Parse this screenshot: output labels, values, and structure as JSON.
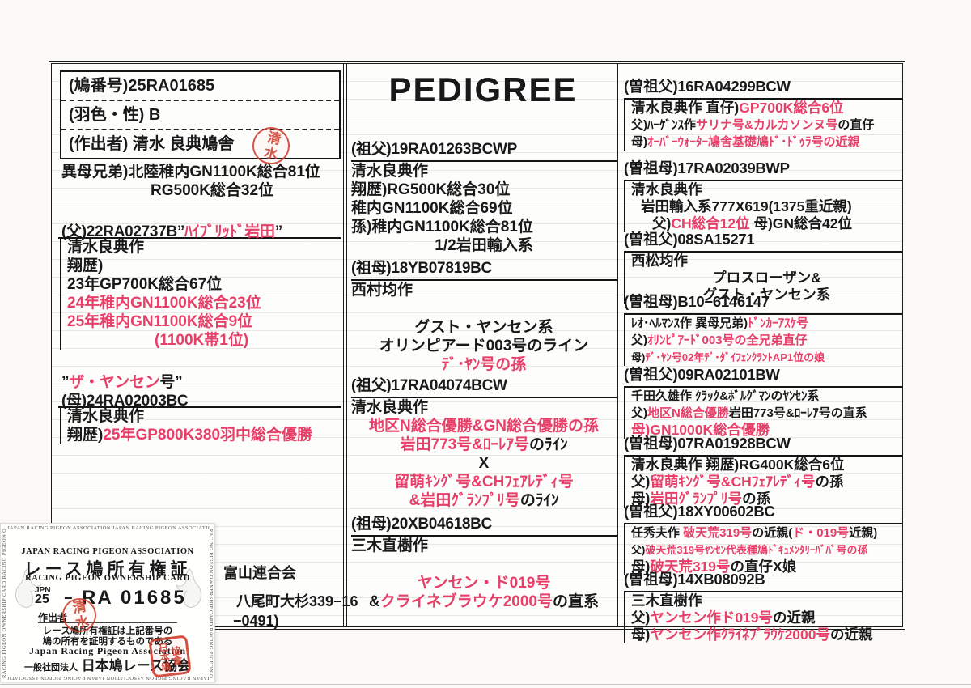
{
  "pedigree_title": "PEDIGREE",
  "info": {
    "rows": [
      "(鳩番号)25RA01685",
      "(羽色・性) B",
      "(作出者)  清水 良典鳩舎"
    ],
    "seal": "清水"
  },
  "left": {
    "siblings": [
      {
        "s": [
          [
            "異母兄弟)北陸稚内GN1100K総合81位",
            "b"
          ]
        ]
      },
      {
        "s": [
          [
            "RG500K総合32位",
            "b"
          ]
        ],
        "x": 110
      }
    ],
    "father": {
      "head": [
        [
          "(父)22RA02737B”",
          "b"
        ],
        [
          "ﾊｲﾌﾞﾘｯﾄﾞ岩田",
          "r"
        ],
        [
          "”",
          "b"
        ]
      ],
      "rows": [
        {
          "s": [
            [
              "清水良典作",
              "b"
            ]
          ]
        },
        {
          "s": [
            [
              "翔歴)",
              "b"
            ]
          ]
        },
        {
          "s": [
            [
              "23年GP700K総合67位",
              "b"
            ]
          ]
        },
        {
          "s": [
            [
              "24年稚内GN1100K総合23位",
              "r"
            ]
          ]
        },
        {
          "s": [
            [
              "25年稚内GN1100K総合9位",
              "r"
            ]
          ]
        },
        {
          "s": [
            [
              "(1100K帯1位)",
              "r"
            ]
          ],
          "x": 108
        }
      ]
    },
    "mother": {
      "name": [
        [
          "”",
          "b"
        ],
        [
          "ザ・ヤンセン",
          "r"
        ],
        [
          "号”",
          "b"
        ]
      ],
      "head": [
        [
          "(母)24RA02003BC",
          "b"
        ]
      ],
      "rows": [
        {
          "s": [
            [
              "清水良典作",
              "b"
            ]
          ]
        },
        {
          "s": [
            [
              "翔歴)",
              "b"
            ],
            [
              "25年GP800K380羽中総合優勝",
              "r"
            ]
          ]
        }
      ]
    }
  },
  "center": {
    "blocks": [
      {
        "head": "(祖父)19RA01263BCWP",
        "rows": [
          {
            "s": [
              [
                "清水良典作",
                "b"
              ]
            ]
          },
          {
            "s": [
              [
                "翔歴)RG500K総合30位",
                "b"
              ]
            ]
          },
          {
            "s": [
              [
                "稚内GN1100K総合69位",
                "b"
              ]
            ]
          },
          {
            "s": [
              [
                "孫)稚内GN1100K総合81位",
                "b"
              ]
            ]
          },
          {
            "s": [
              [
                "1/2岩田輸入系",
                "b"
              ]
            ],
            "c": 1
          }
        ]
      },
      {
        "head": "(祖母)18YB07819BC",
        "rows": [
          {
            "s": [
              [
                "西村均作",
                "b"
              ]
            ]
          },
          {
            "s": []
          },
          {
            "s": [
              [
                "グスト・ヤンセン系",
                "b"
              ]
            ],
            "c": 1
          },
          {
            "s": [
              [
                "オリンピアード003号のライン",
                "b"
              ]
            ],
            "c": 1
          },
          {
            "s": [
              [
                "ﾃﾞ･ﾔﾝ号の孫",
                "r"
              ]
            ],
            "c": 1
          }
        ]
      },
      {
        "head": "(祖父)17RA04074BCW",
        "rows": [
          {
            "s": [
              [
                "清水良典作",
                "b"
              ]
            ]
          },
          {
            "s": [
              [
                "地区N総合優勝&GN総合優勝の孫",
                "r"
              ]
            ],
            "c": 1
          },
          {
            "s": [
              [
                "岩田773号&ﾛｰﾚｱ号",
                "r"
              ],
              [
                "のﾗｲﾝ",
                "b"
              ]
            ],
            "c": 1
          },
          {
            "s": [
              [
                "X",
                "b"
              ]
            ],
            "c": 1
          },
          {
            "s": [
              [
                "留萌ｷﾝｸﾞ号&CHﾌｪｱﾚﾃﾞｨ号",
                "r"
              ]
            ],
            "c": 1
          },
          {
            "s": [
              [
                "&岩田ｸﾞﾗﾝﾌﾟﾘ号",
                "r"
              ],
              [
                "のﾗｲﾝ",
                "b"
              ]
            ],
            "c": 1
          }
        ]
      },
      {
        "head": "(祖母)20XB04618BC",
        "rows": [
          {
            "s": [
              [
                "三木直樹作",
                "b"
              ]
            ]
          },
          {
            "s": []
          },
          {
            "s": [
              [
                "ヤンセン・ド019号",
                "r"
              ]
            ],
            "c": 1
          },
          {
            "s": [
              [
                "&",
                "b"
              ],
              [
                "クライネブラウケ2000号",
                "r"
              ],
              [
                "の直系",
                "b"
              ]
            ],
            "c": 1
          }
        ]
      }
    ]
  },
  "right": {
    "blocks": [
      {
        "head": "(曽祖父)16RA04299BCW",
        "rows": [
          {
            "s": [
              [
                "清水良典作 直仔)",
                "b"
              ],
              [
                "GP700K総合6位",
                "r"
              ]
            ]
          },
          {
            "s": [
              [
                "父)ﾊｰｹﾞﾝｽ作",
                "b"
              ],
              [
                "サリナ号&カルカソンヌ号",
                "r"
              ],
              [
                "の直仔",
                "b"
              ]
            ],
            "sz": "s"
          },
          {
            "s": [
              [
                "母)",
                "b"
              ],
              [
                "ｵｰﾊﾞｰｳｫｰﾀｰ鳩舎基礎鳩ﾄﾞ･ﾄﾞｩﾗ号の近親",
                "r"
              ]
            ],
            "sz": "s"
          }
        ]
      },
      {
        "head": "(曽祖母)17RA02039BWP",
        "rows": [
          {
            "s": [
              [
                "清水良典作",
                "b"
              ]
            ]
          },
          {
            "s": [
              [
                "岩田輸入系777X619(1375重近親)",
                "b"
              ]
            ],
            "x": 12
          },
          {
            "s": [
              [
                "父)",
                "b"
              ],
              [
                "CH総合12位",
                "r"
              ],
              [
                "  母)GN総合42位",
                "b"
              ]
            ],
            "x": 26
          }
        ]
      },
      {
        "head": "(曽祖父)08SA15271",
        "rows": [
          {
            "s": [
              [
                "西松均作",
                "b"
              ]
            ]
          },
          {
            "s": [
              [
                "プロスローザン&",
                "b"
              ]
            ],
            "c": 1
          },
          {
            "s": [
              [
                "グスト・ヤンセン系",
                "b"
              ]
            ],
            "c": 1
          }
        ]
      },
      {
        "head": "(曽祖母)B10−6146147",
        "rows": [
          {
            "s": [
              [
                "ﾚｵ･ﾍﾙﾏﾝｽ作 異母兄弟)",
                "b"
              ],
              [
                "ﾄﾞﾝｶｰｱｽｹ号",
                "r"
              ]
            ],
            "sz": "s"
          },
          {
            "s": [
              [
                "父)",
                "b"
              ],
              [
                "ｵﾘﾝﾋﾟｱｰﾄﾞ003号の全兄弟直仔",
                "r"
              ]
            ],
            "sz": "s"
          },
          {
            "s": [
              [
                "母)",
                "b"
              ],
              [
                "ﾃﾞ･ﾔﾝ号02年ﾃﾞ･ﾀﾞｲﾌｪﾝｸﾗﾝﾄAP1位の娘",
                "r"
              ]
            ],
            "sz": "xs"
          }
        ]
      },
      {
        "head": "(曽祖父)09RA02101BW",
        "rows": [
          {
            "s": [
              [
                "千田久雄作 ｸﾗｯｸ&ﾎﾞﾙｸﾞﾏﾝのﾔﾝｾﾝ系",
                "b"
              ]
            ],
            "sz": "s"
          },
          {
            "s": [
              [
                "父)",
                "b"
              ],
              [
                "地区N総合優勝",
                "r"
              ],
              [
                "岩田773号&ﾛｰﾚｱ号の直系",
                "b"
              ]
            ],
            "sz": "s"
          },
          {
            "s": [
              [
                "母)GN1000K総合優勝",
                "r"
              ]
            ]
          }
        ]
      },
      {
        "head": "(曽祖母)07RA01928BCW",
        "rows": [
          {
            "s": [
              [
                "清水良典作 翔歴)RG400K総合6位",
                "b"
              ]
            ]
          },
          {
            "s": [
              [
                "父)",
                "b"
              ],
              [
                "留萌ｷﾝｸﾞ号&CHﾌｪｱﾚﾃﾞｨ号",
                "r"
              ],
              [
                "の孫",
                "b"
              ]
            ]
          },
          {
            "s": [
              [
                "母)",
                "b"
              ],
              [
                "岩田ｸﾞﾗﾝﾌﾟﾘ号",
                "r"
              ],
              [
                "の孫",
                "b"
              ]
            ]
          }
        ]
      },
      {
        "head": "(曽祖父)18XY00602BC",
        "rows": [
          {
            "s": [
              [
                "任秀夫作 ",
                "b"
              ],
              [
                "破天荒319号",
                "r"
              ],
              [
                "の近親(",
                "b"
              ],
              [
                "ド・019号",
                "r"
              ],
              [
                "近親)",
                "b"
              ]
            ],
            "sz": "s"
          },
          {
            "s": [
              [
                "父)",
                "b"
              ],
              [
                "破天荒319号ﾔﾝｾﾝ代表種鳩ﾄﾞｷｭﾒﾝﾀﾘｰﾊﾞﾊﾞ号の孫",
                "r"
              ]
            ],
            "sz": "xs"
          },
          {
            "s": [
              [
                "母)",
                "b"
              ],
              [
                "破天荒319号",
                "r"
              ],
              [
                "の直仔X娘",
                "b"
              ]
            ]
          }
        ]
      },
      {
        "head": "(曽祖母)14XB08092B",
        "rows": [
          {
            "s": [
              [
                "三木直樹作",
                "b"
              ]
            ]
          },
          {
            "s": [
              [
                "父)",
                "b"
              ],
              [
                "ヤンセン作ド019号",
                "r"
              ],
              [
                "の近親",
                "b"
              ]
            ]
          },
          {
            "s": [
              [
                "母)",
                "b"
              ],
              [
                "ヤンセン作ｸﾗｲﾈﾌﾞﾗｳｹ2000号",
                "r"
              ],
              [
                "の近親",
                "b"
              ]
            ]
          }
        ]
      }
    ]
  },
  "affiliation": {
    "line1": "富山連合会",
    "line2": "八尾町大杉339−16",
    "line3": "−0491)"
  },
  "card": {
    "edge_top": "JAPAN RACING PIGEON ASSOCIATION JAPAN RACING PIGEON ASSOCIATION",
    "edge_bottom": "JAPAN RACING PIGEON ASSOCIATION JAPAN RACING PIGEON ASSOCIATION",
    "edge_left": "RACING PIGEON OWNERSHIP CARD RACING PIGEON OWNERSHIP CARD",
    "edge_right": "RACING PIGEON OWNERSHIP CARD RACING PIGEON OWNERSHIP CARD",
    "assoc_en_top": "JAPAN RACING PIGEON ASSOCIATION",
    "title_jp": "レース鳩所有権証",
    "subtitle_en": "RACING PIGEON OWNERSHIP CARD",
    "country": "JPN",
    "year": "25",
    "dash": "−",
    "series": "RA",
    "number": "01685",
    "breeder_label": "作出者",
    "cert_line1": "レース鳩所有権証は上記番号の",
    "cert_line2": "鳩の所有を証明するものである",
    "assoc_en_bottom": "Japan Racing Pigeon Association",
    "org_prefix": "一般社団法人",
    "org_name": "日本鳩レース協会",
    "seal_breeder": "清水",
    "seal_org_col1": "日本鳩",
    "seal_org_col2": "協會"
  },
  "colors": {
    "accent_red_text": "#e83f69",
    "seal_red": "#d04030",
    "ink": "#191919"
  }
}
